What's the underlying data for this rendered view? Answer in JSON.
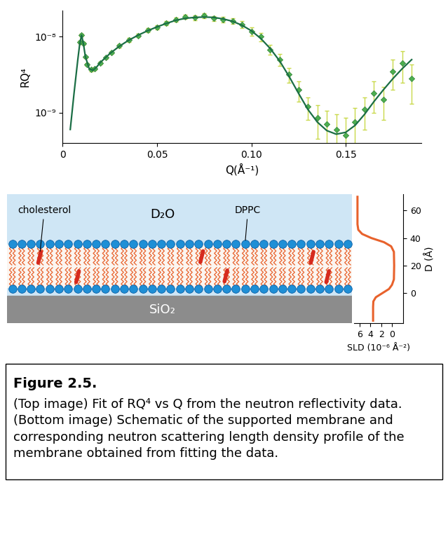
{
  "chart_data": [
    {
      "type": "line",
      "xlabel": "Q(Å⁻¹)",
      "ylabel": "RQ⁴",
      "log": "y",
      "xlim": [
        0,
        0.19
      ],
      "xticks": [
        0,
        0.05,
        {
          "value": 0.1,
          "label": "0.10"
        },
        0.15
      ],
      "ylim": [
        4e-10,
        2.2e-08
      ],
      "yticks": [
        {
          "value": 1e-09,
          "label": "10⁻⁹"
        },
        {
          "value": 1e-08,
          "label": "10⁻⁸"
        }
      ],
      "series": [
        {
          "type": "line",
          "color": "#1b6e45",
          "line_style": "solid",
          "x": [
            0.004,
            0.006,
            0.008,
            0.009,
            0.01,
            0.011,
            0.012,
            0.014,
            0.016,
            0.018,
            0.02,
            0.025,
            0.03,
            0.035,
            0.04,
            0.045,
            0.05,
            0.055,
            0.06,
            0.065,
            0.07,
            0.075,
            0.08,
            0.085,
            0.09,
            0.095,
            0.1,
            0.105,
            0.11,
            0.115,
            0.12,
            0.125,
            0.13,
            0.135,
            0.14,
            0.145,
            0.15,
            0.155,
            0.16,
            0.165,
            0.17,
            0.175,
            0.18,
            0.185
          ],
          "values": [
            6e-10,
            1.8e-09,
            5e-09,
            8e-09,
            1.05e-08,
            8e-09,
            5.5e-09,
            3.8e-09,
            3.6e-09,
            4e-09,
            4.6e-09,
            6e-09,
            7.5e-09,
            9e-09,
            1.05e-08,
            1.2e-08,
            1.35e-08,
            1.5e-08,
            1.65e-08,
            1.75e-08,
            1.8e-08,
            1.82e-08,
            1.8e-08,
            1.72e-08,
            1.6e-08,
            1.42e-08,
            1.2e-08,
            9.5e-09,
            7e-09,
            4.8e-09,
            3e-09,
            1.8e-09,
            1.1e-09,
            7.5e-10,
            5.8e-10,
            5.2e-10,
            5.5e-10,
            6.8e-10,
            9.5e-10,
            1.4e-09,
            2e-09,
            2.8e-09,
            3.8e-09,
            5e-09
          ]
        },
        {
          "type": "scatter",
          "color": "#4caf50",
          "marker": "diamond",
          "x": [
            0.009,
            0.01,
            0.011,
            0.012,
            0.013,
            0.015,
            0.017,
            0.02,
            0.023,
            0.026,
            0.03,
            0.035,
            0.04,
            0.045,
            0.05,
            0.055,
            0.06,
            0.065,
            0.07,
            0.075,
            0.08,
            0.085,
            0.09,
            0.095,
            0.1,
            0.105,
            0.11,
            0.115,
            0.12,
            0.125,
            0.13,
            0.135,
            0.14,
            0.145,
            0.15,
            0.155,
            0.16,
            0.165,
            0.17,
            0.175,
            0.18,
            0.185
          ],
          "values": [
            8.5e-09,
            1.05e-08,
            8.2e-09,
            5.4e-09,
            4.3e-09,
            3.7e-09,
            3.8e-09,
            4.5e-09,
            5.3e-09,
            6.2e-09,
            7.6e-09,
            9.1e-09,
            1.04e-08,
            1.22e-08,
            1.33e-08,
            1.52e-08,
            1.68e-08,
            1.85e-08,
            1.78e-08,
            1.9e-08,
            1.75e-08,
            1.7e-08,
            1.62e-08,
            1.45e-08,
            1.18e-08,
            1e-08,
            6.8e-09,
            5e-09,
            3.2e-09,
            2e-09,
            1.2e-09,
            8.5e-10,
            7e-10,
            6e-10,
            5e-10,
            7.5e-10,
            1.1e-09,
            1.8e-09,
            1.5e-09,
            3.5e-09,
            4.5e-09,
            2.8e-09
          ],
          "error": [
            4e-10,
            4e-10,
            3e-10,
            2e-10,
            2e-10,
            2e-10,
            2e-10,
            2e-10,
            2e-10,
            3e-10,
            4e-10,
            5e-10,
            6e-10,
            7e-10,
            8e-10,
            9e-10,
            1e-09,
            1.2e-09,
            1.2e-09,
            1.4e-09,
            1.4e-09,
            1.5e-09,
            1.5e-09,
            1.5e-09,
            1.4e-09,
            1.3e-09,
            1e-09,
            9e-10,
            7e-10,
            6e-10,
            4e-10,
            4e-10,
            3.5e-10,
            3.5e-10,
            3.5e-10,
            4e-10,
            5e-10,
            8e-10,
            7e-10,
            1.5e-09,
            2e-09,
            1.5e-09
          ]
        }
      ]
    },
    {
      "type": "line",
      "xlabel": "SLD (10⁻⁶ Å⁻²)",
      "ylabel": "D (Å)",
      "color": "#e8622c",
      "xlim": [
        7,
        -2
      ],
      "xticks": [
        6,
        4,
        2,
        0
      ],
      "ylim": [
        -22,
        72
      ],
      "yticks": [
        0,
        20,
        40,
        60
      ],
      "x": [
        3.5,
        3.5,
        3.45,
        3.0,
        1.8,
        0.6,
        0.05,
        -0.3,
        -0.35,
        -0.3,
        0.2,
        1.5,
        3.8,
        5.5,
        6.2,
        6.35,
        6.35,
        6.35
      ],
      "values": [
        -20,
        -10,
        -6,
        -3,
        0,
        3,
        6,
        10,
        20,
        30,
        34,
        37,
        40,
        43,
        46,
        50,
        60,
        70
      ]
    }
  ],
  "diagram": {
    "solvent": "D₂O",
    "substrate": "SiO₂",
    "lipid": "DPPC",
    "sterol": "cholesterol"
  },
  "caption": {
    "label": "Figure 2.5.",
    "text": "(Top image) Fit of RQ⁴ vs Q from the neutron reflectivity data. (Bottom image) Schematic of the supported membrane and corresponding neutron scattering length density profile of the membrane obtained from fitting the data."
  }
}
